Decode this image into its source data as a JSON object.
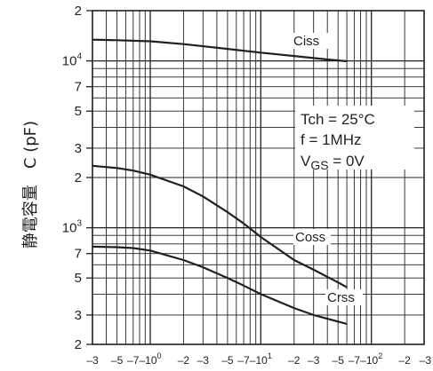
{
  "chart_data": {
    "type": "line",
    "title": "",
    "ylabel": "静電容量　C (pF)",
    "xlabel": "",
    "x_scale": "log",
    "y_scale": "log",
    "xlim": [
      0.3,
      300
    ],
    "ylim": [
      200,
      20000
    ],
    "grid": true,
    "y_ticks": [
      {
        "value": 20000,
        "label": "2",
        "sup": ""
      },
      {
        "value": 10000,
        "label": "10",
        "sup": "4"
      },
      {
        "value": 7000,
        "label": "7",
        "sup": ""
      },
      {
        "value": 5000,
        "label": "5",
        "sup": ""
      },
      {
        "value": 3000,
        "label": "3",
        "sup": ""
      },
      {
        "value": 2000,
        "label": "2",
        "sup": ""
      },
      {
        "value": 1000,
        "label": "10",
        "sup": "3"
      },
      {
        "value": 700,
        "label": "7",
        "sup": ""
      },
      {
        "value": 500,
        "label": "5",
        "sup": ""
      },
      {
        "value": 300,
        "label": "3",
        "sup": ""
      },
      {
        "value": 200,
        "label": "2",
        "sup": ""
      }
    ],
    "x_ticks": [
      {
        "value": 0.3,
        "label": "–3",
        "sup": ""
      },
      {
        "value": 0.5,
        "label": "–5",
        "sup": ""
      },
      {
        "value": 0.7,
        "label": "–7",
        "sup": ""
      },
      {
        "value": 1,
        "label": "–10",
        "sup": "0"
      },
      {
        "value": 2,
        "label": "–2",
        "sup": ""
      },
      {
        "value": 3,
        "label": "–3",
        "sup": ""
      },
      {
        "value": 5,
        "label": "–5",
        "sup": ""
      },
      {
        "value": 7,
        "label": "–7",
        "sup": ""
      },
      {
        "value": 10,
        "label": "–10",
        "sup": "1"
      },
      {
        "value": 20,
        "label": "–2",
        "sup": ""
      },
      {
        "value": 30,
        "label": "–3",
        "sup": ""
      },
      {
        "value": 50,
        "label": "–5",
        "sup": ""
      },
      {
        "value": 70,
        "label": "–7",
        "sup": ""
      },
      {
        "value": 100,
        "label": "–10",
        "sup": "2"
      },
      {
        "value": 200,
        "label": "–2",
        "sup": ""
      },
      {
        "value": 300,
        "label": "–3",
        "sup": ""
      }
    ],
    "series": [
      {
        "name": "Ciss",
        "color": "#231f20",
        "points": [
          [
            0.3,
            13400
          ],
          [
            0.5,
            13300
          ],
          [
            1,
            13100
          ],
          [
            2,
            12600
          ],
          [
            5,
            11800
          ],
          [
            10,
            11200
          ],
          [
            20,
            10700
          ],
          [
            40,
            10200
          ],
          [
            60,
            9950
          ]
        ]
      },
      {
        "name": "Coss",
        "color": "#231f20",
        "points": [
          [
            0.3,
            2350
          ],
          [
            0.5,
            2280
          ],
          [
            0.7,
            2200
          ],
          [
            1,
            2080
          ],
          [
            2,
            1770
          ],
          [
            3,
            1540
          ],
          [
            5,
            1240
          ],
          [
            7,
            1060
          ],
          [
            10,
            880
          ],
          [
            20,
            640
          ],
          [
            30,
            560
          ],
          [
            50,
            470
          ],
          [
            60,
            440
          ]
        ]
      },
      {
        "name": "Crss",
        "color": "#231f20",
        "points": [
          [
            0.3,
            770
          ],
          [
            0.5,
            765
          ],
          [
            0.7,
            755
          ],
          [
            1,
            730
          ],
          [
            2,
            640
          ],
          [
            3,
            580
          ],
          [
            5,
            500
          ],
          [
            7,
            450
          ],
          [
            10,
            400
          ],
          [
            20,
            330
          ],
          [
            30,
            300
          ],
          [
            60,
            265
          ]
        ]
      }
    ],
    "annotations": [
      "Tch = 25°C",
      "f = 1MHz",
      "V",
      "GS",
      " = 0V"
    ]
  }
}
